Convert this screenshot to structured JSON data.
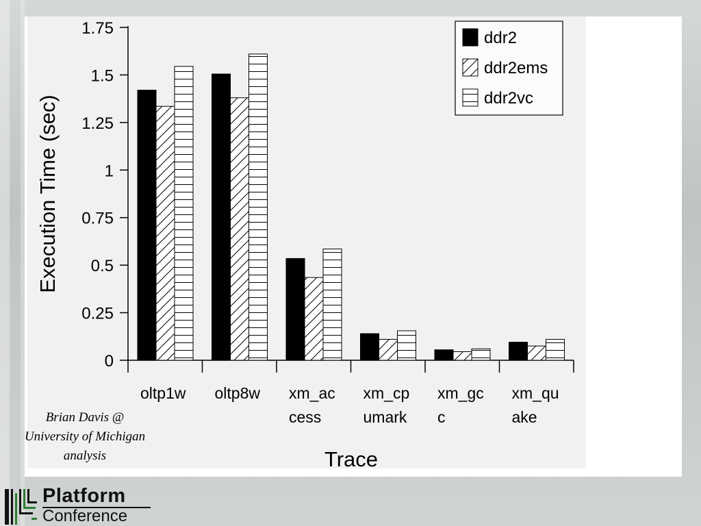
{
  "credit": {
    "line1": "Brian Davis @",
    "line2": "University of Michigan",
    "line3": "analysis"
  },
  "logo": {
    "word1": "Platform",
    "word2": "Conference"
  },
  "chart_data": {
    "type": "bar",
    "title": "",
    "xlabel": "Trace",
    "ylabel": "Execution Time (sec)",
    "ylim": [
      0,
      1.75
    ],
    "yticks": [
      "0",
      "0.25",
      "0.5",
      "0.75",
      "1",
      "1.25",
      "1.5",
      "1.75"
    ],
    "categories": [
      [
        "oltp1w"
      ],
      [
        "oltp8w"
      ],
      [
        "xm_ac",
        "cess"
      ],
      [
        "xm_cp",
        "umark"
      ],
      [
        "xm_gc",
        "c"
      ],
      [
        "xm_qu",
        "ake"
      ]
    ],
    "series": [
      {
        "name": "ddr2",
        "pattern": "solid",
        "values": [
          1.42,
          1.505,
          0.535,
          0.14,
          0.055,
          0.095
        ]
      },
      {
        "name": "ddr2ems",
        "pattern": "diagonal",
        "values": [
          1.335,
          1.38,
          0.435,
          0.11,
          0.045,
          0.075
        ]
      },
      {
        "name": "ddr2vc",
        "pattern": "horizontal",
        "values": [
          1.545,
          1.61,
          0.585,
          0.155,
          0.06,
          0.11
        ]
      }
    ],
    "grid": false,
    "legend": "top-right"
  }
}
